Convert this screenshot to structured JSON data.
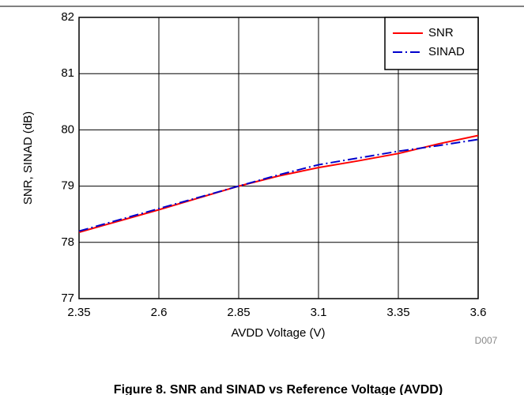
{
  "chart_data": {
    "type": "line",
    "title": "Figure 8. SNR and SINAD vs Reference Voltage (AVDD)",
    "x_label": "AVDD Voltage (V)",
    "y_label": "SNR, SINAD (dB)",
    "note": "D007",
    "x": [
      2.35,
      2.475,
      2.6,
      2.725,
      2.85,
      2.975,
      3.1,
      3.225,
      3.35,
      3.475,
      3.6
    ],
    "series": [
      {
        "name": "SNR",
        "color": "#ff0000",
        "dash": "solid",
        "values": [
          78.18,
          78.38,
          78.58,
          78.79,
          79.0,
          79.18,
          79.33,
          79.45,
          79.58,
          79.75,
          79.9
        ]
      },
      {
        "name": "SINAD",
        "color": "#0000cc",
        "dash": "dash-dot",
        "values": [
          78.2,
          78.4,
          78.6,
          78.8,
          79.0,
          79.2,
          79.38,
          79.5,
          79.62,
          79.72,
          79.83
        ]
      }
    ],
    "xlim": [
      2.35,
      3.6
    ],
    "xticks": [
      2.35,
      2.6,
      2.85,
      3.1,
      3.35,
      3.6
    ],
    "ylim": [
      77,
      82
    ],
    "yticks": [
      77,
      78,
      79,
      80,
      81,
      82
    ],
    "grid": true,
    "legend": "top-right"
  }
}
